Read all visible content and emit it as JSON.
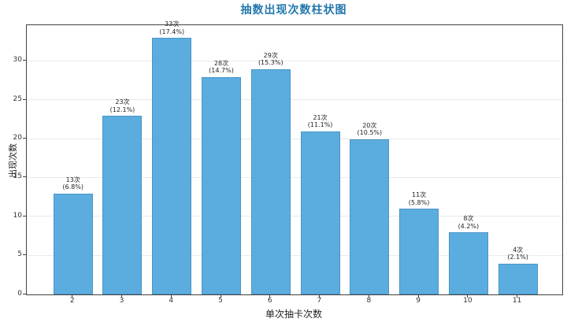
{
  "chart_data": {
    "type": "bar",
    "title": "抽数出现次数柱状图",
    "xlabel": "单次抽卡次数",
    "ylabel": "出现次数",
    "categories": [
      "2",
      "3",
      "4",
      "5",
      "6",
      "7",
      "8",
      "9",
      "10",
      "11"
    ],
    "values": [
      13,
      23,
      33,
      28,
      29,
      21,
      20,
      11,
      8,
      4
    ],
    "count_labels": [
      "13次",
      "23次",
      "33次",
      "28次",
      "29次",
      "21次",
      "20次",
      "11次",
      "8次",
      "4次"
    ],
    "pct_labels": [
      "(6.8%)",
      "(12.1%)",
      "(17.4%)",
      "(14.7%)",
      "(15.3%)",
      "(11.1%)",
      "(10.5%)",
      "(5.8%)",
      "(4.2%)",
      "(2.1%)"
    ],
    "yticks": [
      0,
      5,
      10,
      15,
      20,
      25,
      30
    ],
    "ylim": [
      0,
      34.65
    ],
    "grid": true,
    "legend": "none",
    "colors": {
      "bar_fill": "#5baddf",
      "bar_edge": "#3f8cbe",
      "title_text": "#2277ad",
      "tick_text": "#333333",
      "grid_line": "#e9e9e9",
      "spine": "#424242"
    }
  }
}
